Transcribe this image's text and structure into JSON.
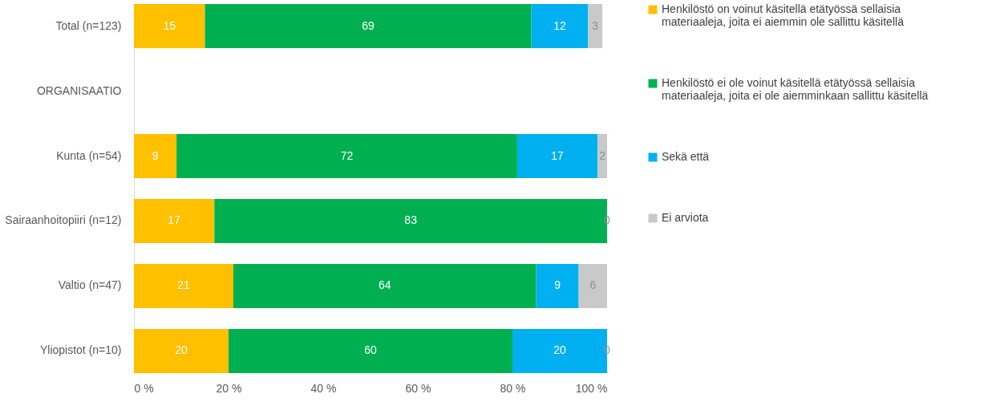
{
  "chart_data": {
    "type": "bar",
    "orientation": "horizontal",
    "stacked": true,
    "categories": [
      "Total (n=123)",
      "ORGANISAATIO",
      "Kunta (n=54)",
      "Sairaanhoitopiiri (n=12)",
      "Valtio (n=47)",
      "Yliopistot (n=10)"
    ],
    "series": [
      {
        "name": "Henkilöstö on voinut käsitellä etätyössä sellaisia materiaaleja, joita ei aiemmin ole sallittu käsitellä",
        "color": "#ffc000",
        "values": [
          15,
          null,
          9,
          17,
          21,
          20
        ]
      },
      {
        "name": "Henkilöstö ei ole voinut käsitellä etätyössä sellaisia materiaaleja, joita ei ole aiemminkaan sallittu käsitellä",
        "color": "#00b050",
        "values": [
          69,
          null,
          72,
          83,
          64,
          60
        ]
      },
      {
        "name": "Sekä että",
        "color": "#00b0f0",
        "values": [
          12,
          null,
          17,
          0,
          9,
          20
        ],
        "value_labels": [
          "12",
          null,
          "17",
          null,
          "9",
          "20"
        ]
      },
      {
        "name": "Ei arviota",
        "color": "#c9c9c9",
        "values": [
          3,
          null,
          2,
          0,
          6,
          0
        ]
      }
    ],
    "xlim": [
      0,
      100
    ],
    "xticks": [
      {
        "value": 0,
        "label": "0 %"
      },
      {
        "value": 20,
        "label": "20 %"
      },
      {
        "value": 40,
        "label": "40 %"
      },
      {
        "value": 60,
        "label": "60 %"
      },
      {
        "value": 80,
        "label": "80 %"
      },
      {
        "value": 100,
        "label": "100 %"
      }
    ],
    "data_labels": true,
    "grid": false,
    "legend": "right"
  }
}
